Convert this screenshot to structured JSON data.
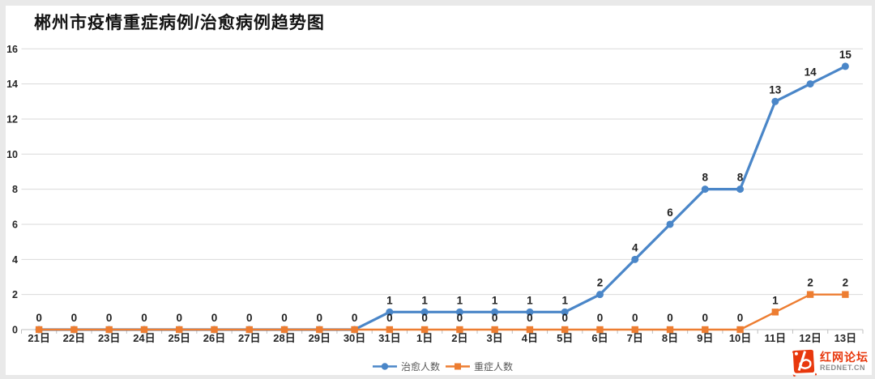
{
  "title": "郴州市疫情重症病例/治愈病例趋势图",
  "chart_data": {
    "type": "line",
    "categories": [
      "21日",
      "22日",
      "23日",
      "24日",
      "25日",
      "26日",
      "27日",
      "28日",
      "29日",
      "30日",
      "31日",
      "1日",
      "2日",
      "3日",
      "4日",
      "5日",
      "6日",
      "7日",
      "8日",
      "9日",
      "10日",
      "11日",
      "12日",
      "13日"
    ],
    "series": [
      {
        "name": "治愈人数",
        "marker": "circle",
        "color": "#4a86c8",
        "values": [
          0,
          0,
          0,
          0,
          0,
          0,
          0,
          0,
          0,
          0,
          1,
          1,
          1,
          1,
          1,
          1,
          2,
          4,
          6,
          8,
          8,
          13,
          14,
          15
        ]
      },
      {
        "name": "重症人数",
        "marker": "square",
        "color": "#ed7d31",
        "values": [
          0,
          0,
          0,
          0,
          0,
          0,
          0,
          0,
          0,
          0,
          0,
          0,
          0,
          0,
          0,
          0,
          0,
          0,
          0,
          0,
          0,
          1,
          2,
          2
        ]
      }
    ],
    "title": "郴州市疫情重症病例/治愈病例趋势图",
    "xlabel": "",
    "ylabel": "",
    "ylim": [
      0,
      16
    ],
    "yticks": [
      0,
      2,
      4,
      6,
      8,
      10,
      12,
      14,
      16
    ],
    "grid": true,
    "data_labels": true,
    "legend_position": "bottom-center"
  },
  "colors": {
    "gridline": "#d9d9d9",
    "axis_line": "#bfbfbf",
    "tick_mark": "#bfbfbf",
    "data_label": "#1f1f1f",
    "x_tick_label": "#262626",
    "y_tick_label": "#262626",
    "legend_text": "#595959",
    "frame": "#e9e9e9",
    "card": "#ffffff",
    "watermark_red": "#e8380d",
    "watermark_gray": "#8c8c8c"
  },
  "watermark": {
    "site_name": "红网论坛",
    "site_url": "REDNET.CN"
  }
}
